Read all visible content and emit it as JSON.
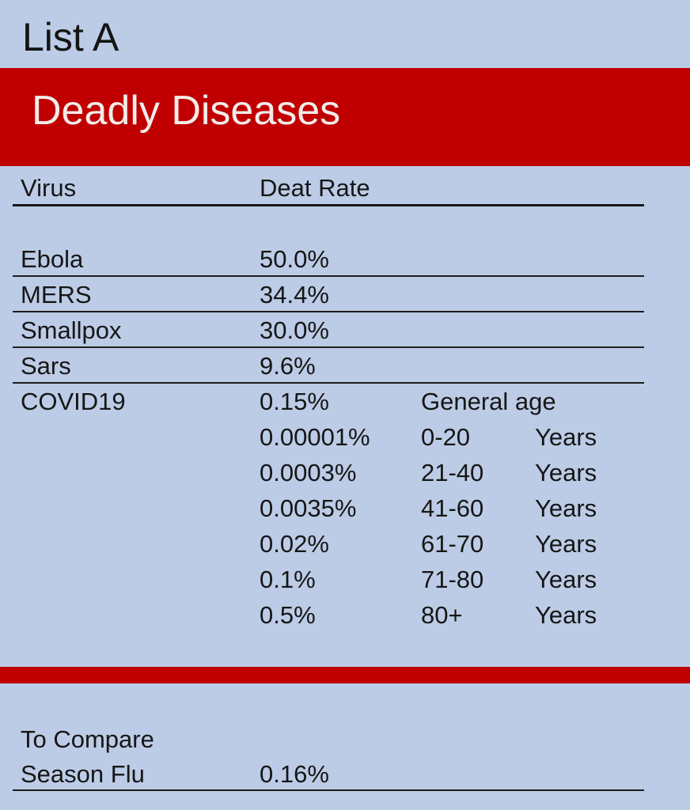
{
  "page_title": "List A",
  "banner": {
    "title": "Deadly Diseases"
  },
  "columns": {
    "virus": "Virus",
    "rate": "Deat Rate"
  },
  "diseases": [
    {
      "name": "Ebola",
      "rate": "50.0%"
    },
    {
      "name": "MERS",
      "rate": "34.4%"
    },
    {
      "name": "Smallpox",
      "rate": "30.0%"
    },
    {
      "name": "Sars",
      "rate": "9.6%"
    },
    {
      "name": "COVID19",
      "rate": "0.15%",
      "note": "General age"
    }
  ],
  "covid_ages": [
    {
      "rate": "0.00001%",
      "range": "0-20",
      "unit": "Years"
    },
    {
      "rate": "0.0003%",
      "range": "21-40",
      "unit": "Years"
    },
    {
      "rate": "0.0035%",
      "range": "41-60",
      "unit": "Years"
    },
    {
      "rate": "0.02%",
      "range": "61-70",
      "unit": "Years"
    },
    {
      "rate": "0.1%",
      "range": "71-80",
      "unit": "Years"
    },
    {
      "rate": "0.5%",
      "range": "80+",
      "unit": "Years"
    }
  ],
  "compare": {
    "heading": "To Compare",
    "label": "Season Flu",
    "rate": "0.16%"
  },
  "colors": {
    "background": "#bccce6",
    "banner": "#c00000",
    "banner_text": "#f2ecea"
  }
}
